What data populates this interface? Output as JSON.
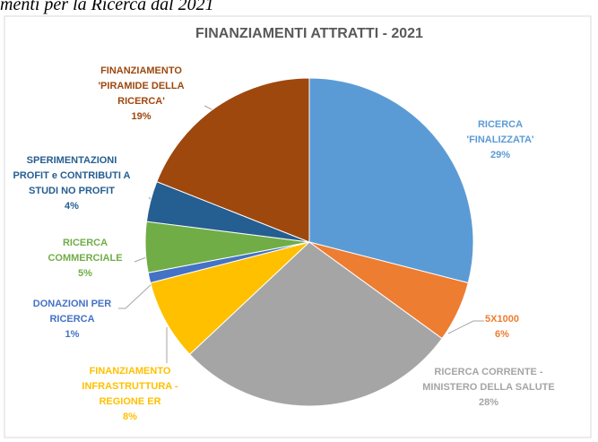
{
  "page_caption": "menti per la Ricerca dal 2021",
  "chart_data": {
    "type": "pie",
    "title": "FINANZIAMENTI ATTRATTI - 2021",
    "categories": [
      "RICERCA 'FINALIZZATA'",
      "5X1000",
      "RICERCA CORRENTE - MINISTERO DELLA SALUTE",
      "FINANZIAMENTO INFRASTRUTTURA - REGIONE ER",
      "DONAZIONI PER RICERCA",
      "RICERCA COMMERCIALE",
      "SPERIMENTAZIONI PROFIT e CONTRIBUTI A STUDI NO PROFIT",
      "FINANZIAMENTO 'PIRAMIDE DELLA RICERCA'"
    ],
    "values": [
      29,
      6,
      28,
      8,
      1,
      5,
      4,
      19
    ],
    "value_labels": [
      "29%",
      "6%",
      "28%",
      "8%",
      "1%",
      "5%",
      "4%",
      "19%"
    ],
    "colors": [
      "#5b9bd5",
      "#ed7d31",
      "#a5a5a5",
      "#ffc000",
      "#4472c4",
      "#70ad47",
      "#255e91",
      "#9e480e"
    ]
  }
}
